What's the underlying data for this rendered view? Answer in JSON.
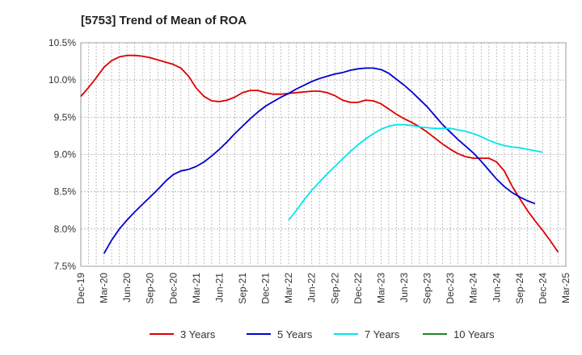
{
  "chart_data": {
    "type": "line",
    "title": "[5753]  Trend of Mean of ROA",
    "xlabel": "",
    "ylabel": "",
    "x_ticks": [
      "Dec-19",
      "Mar-20",
      "Jun-20",
      "Sep-20",
      "Dec-20",
      "Mar-21",
      "Jun-21",
      "Sep-21",
      "Dec-21",
      "Mar-22",
      "Jun-22",
      "Sep-22",
      "Dec-22",
      "Mar-23",
      "Jun-23",
      "Sep-23",
      "Dec-23",
      "Mar-24",
      "Jun-24",
      "Sep-24",
      "Dec-24",
      "Mar-25"
    ],
    "y_ticks": [
      "7.5%",
      "8.0%",
      "8.5%",
      "9.0%",
      "9.5%",
      "10.0%",
      "10.5%"
    ],
    "ylim": [
      7.5,
      10.5
    ],
    "grid": true,
    "legend_position": "bottom",
    "series": [
      {
        "name": "3 Years",
        "color": "#dd0000",
        "start_index": 0,
        "values": [
          9.78,
          9.9,
          10.03,
          10.17,
          10.26,
          10.31,
          10.33,
          10.33,
          10.32,
          10.3,
          10.27,
          10.24,
          10.21,
          10.16,
          10.05,
          9.89,
          9.78,
          9.72,
          9.71,
          9.73,
          9.77,
          9.83,
          9.86,
          9.86,
          9.83,
          9.81,
          9.81,
          9.82,
          9.83,
          9.84,
          9.85,
          9.85,
          9.83,
          9.79,
          9.73,
          9.7,
          9.7,
          9.73,
          9.72,
          9.68,
          9.61,
          9.54,
          9.48,
          9.43,
          9.37,
          9.3,
          9.22,
          9.14,
          9.07,
          9.01,
          8.97,
          8.95,
          8.95,
          8.95,
          8.9,
          8.78,
          8.58,
          8.41,
          8.25,
          8.11,
          7.98,
          7.84,
          7.69
        ]
      },
      {
        "name": "5 Years",
        "color": "#0000cc",
        "start_index": 3,
        "values": [
          7.67,
          7.85,
          8.0,
          8.12,
          8.23,
          8.33,
          8.43,
          8.53,
          8.64,
          8.73,
          8.78,
          8.8,
          8.84,
          8.9,
          8.98,
          9.07,
          9.17,
          9.28,
          9.38,
          9.48,
          9.57,
          9.65,
          9.71,
          9.77,
          9.82,
          9.88,
          9.93,
          9.98,
          10.02,
          10.05,
          10.08,
          10.1,
          10.13,
          10.15,
          10.16,
          10.16,
          10.14,
          10.09,
          10.01,
          9.93,
          9.84,
          9.74,
          9.64,
          9.52,
          9.4,
          9.3,
          9.2,
          9.11,
          9.02,
          8.91,
          8.79,
          8.67,
          8.57,
          8.49,
          8.43,
          8.38,
          8.34
        ]
      },
      {
        "name": "7 Years",
        "color": "#00e5ee",
        "start_index": 27,
        "values": [
          8.12,
          8.25,
          8.39,
          8.52,
          8.63,
          8.74,
          8.84,
          8.94,
          9.04,
          9.13,
          9.21,
          9.28,
          9.34,
          9.38,
          9.4,
          9.4,
          9.39,
          9.37,
          9.36,
          9.35,
          9.35,
          9.35,
          9.33,
          9.31,
          9.28,
          9.24,
          9.19,
          9.15,
          9.12,
          9.1,
          9.09,
          9.07,
          9.05,
          9.03
        ]
      },
      {
        "name": "10 Years",
        "color": "#228822",
        "start_index": 0,
        "values": []
      }
    ]
  }
}
